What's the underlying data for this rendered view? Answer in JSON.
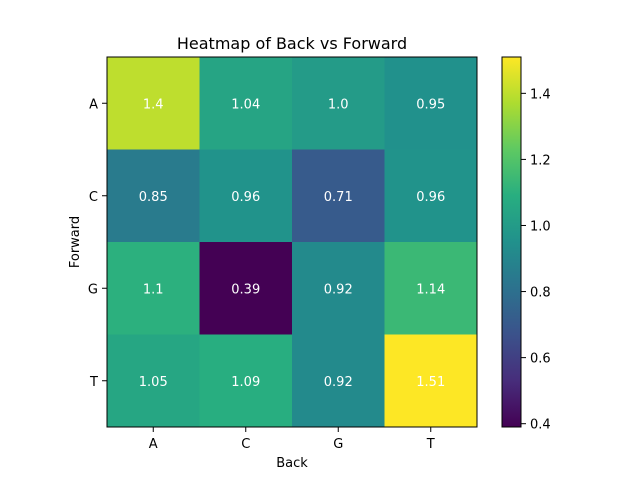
{
  "chart_data": {
    "type": "heatmap",
    "title": "Heatmap of Back vs Forward",
    "xlabel": "Back",
    "ylabel": "Forward",
    "x_categories": [
      "A",
      "C",
      "G",
      "T"
    ],
    "y_categories": [
      "A",
      "C",
      "G",
      "T"
    ],
    "values": [
      [
        1.4,
        1.04,
        1.0,
        0.95
      ],
      [
        0.85,
        0.96,
        0.71,
        0.96
      ],
      [
        1.1,
        0.39,
        0.92,
        1.14
      ],
      [
        1.05,
        1.09,
        0.92,
        1.51
      ]
    ],
    "value_labels": [
      [
        "1.4",
        "1.04",
        "1.0",
        "0.95"
      ],
      [
        "0.85",
        "0.96",
        "0.71",
        "0.96"
      ],
      [
        "1.1",
        "0.39",
        "0.92",
        "1.14"
      ],
      [
        "1.05",
        "1.09",
        "0.92",
        "1.51"
      ]
    ],
    "colormap": "viridis",
    "vmin": 0.39,
    "vmax": 1.51,
    "colorbar": {
      "ticks": [
        0.4,
        0.6,
        0.8,
        1.0,
        1.2,
        1.4
      ],
      "tick_labels": [
        "0.4",
        "0.6",
        "0.8",
        "1.0",
        "1.2",
        "1.4"
      ]
    }
  }
}
